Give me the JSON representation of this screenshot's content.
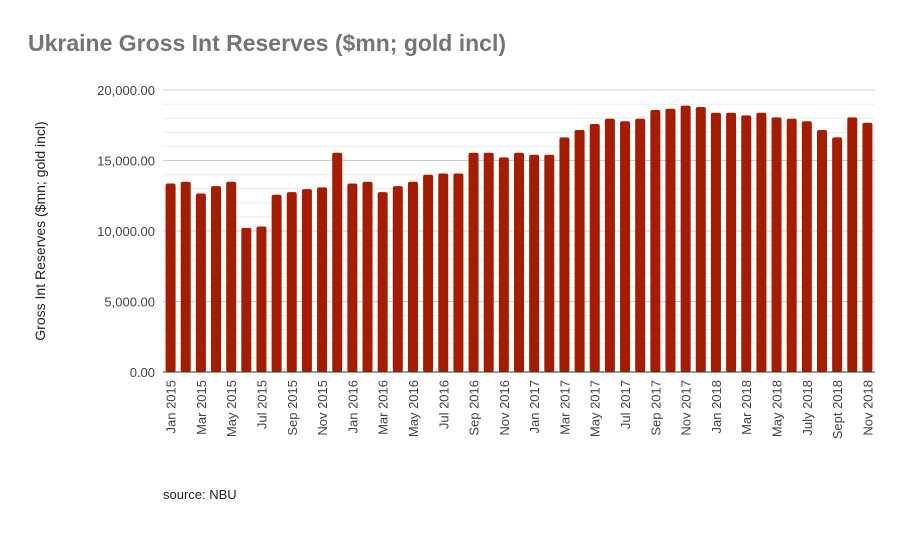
{
  "chart_data": {
    "type": "bar",
    "title": "Ukraine Gross Int Reserves ($mn; gold incl)",
    "ylabel": "Gross Int Reserves ($mn; gold incl)",
    "xlabel": "",
    "ylim": [
      0,
      20000
    ],
    "yticks": [
      "0.00",
      "5,000.00",
      "10,000.00",
      "15,000.00",
      "20,000.00"
    ],
    "grid": true,
    "bar_color": "#a51d00",
    "categories": [
      "Jan 2015",
      "",
      "Mar 2015",
      "",
      "May 2015",
      "",
      "Jul 2015",
      "",
      "Sep 2015",
      "",
      "Nov 2015",
      "",
      "Jan 2016",
      "",
      "Mar 2016",
      "",
      "May 2016",
      "",
      "Jul 2016",
      "",
      "Sep 2016",
      "",
      "Nov 2016",
      "",
      "Jan 2017",
      "",
      "Mar 2017",
      "",
      "May 2017",
      "",
      "Jul 2017",
      "",
      "Sep 2017",
      "",
      "Nov 2017",
      "",
      "Jan 2018",
      "",
      "Mar 2018",
      "",
      "May 2018",
      "",
      "July 2018",
      "",
      "Sept 2018",
      "",
      "Nov 2018"
    ],
    "values": [
      13370,
      13490,
      12660,
      13180,
      13490,
      10220,
      10320,
      12570,
      12760,
      12970,
      13090,
      15550,
      13370,
      13490,
      12760,
      13180,
      13490,
      13990,
      14080,
      14080,
      15550,
      15550,
      15220,
      15550,
      15410,
      15410,
      16640,
      17160,
      17590,
      17960,
      17780,
      17960,
      18580,
      18670,
      18890,
      18790,
      18390,
      18390,
      18200,
      18390,
      18060,
      17960,
      17780,
      17160,
      16640,
      18060,
      17680
    ]
  },
  "source": "source: NBU"
}
